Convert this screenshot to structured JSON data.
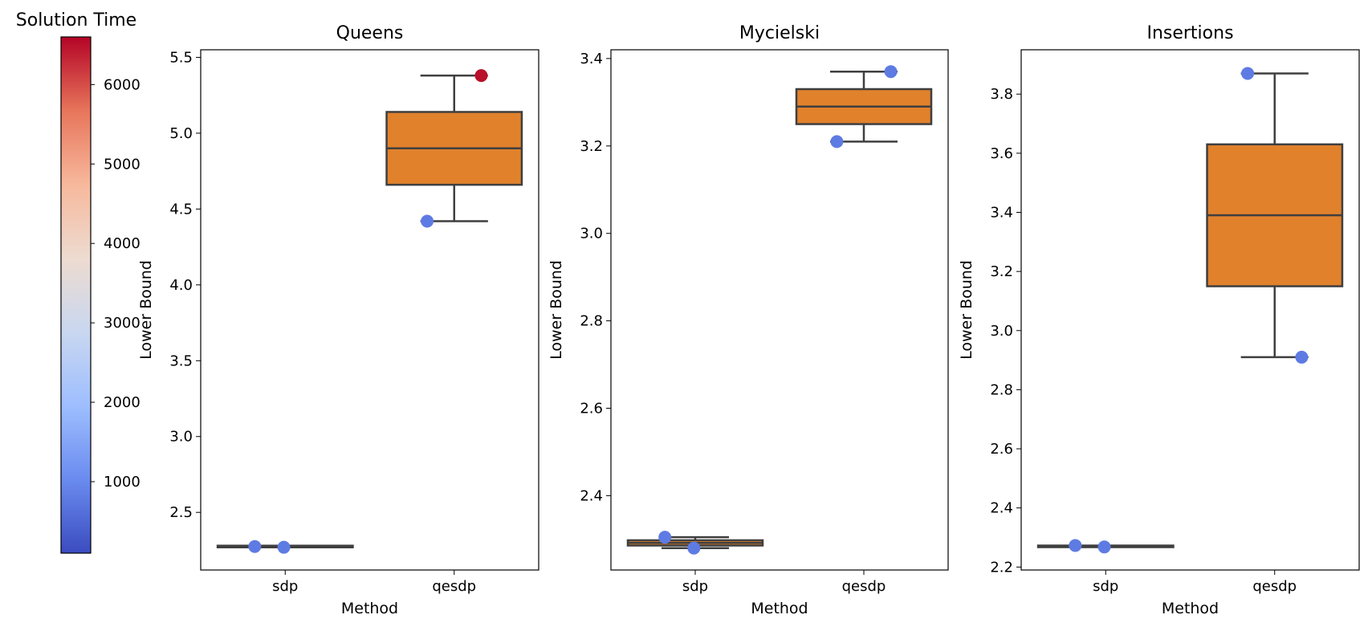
{
  "chart_data": {
    "type": "box-strip",
    "x_categories": [
      "sdp",
      "qesdp"
    ],
    "colorbar": {
      "title": "Solution Time",
      "colormap": "coolwarm",
      "range": [
        100,
        6600
      ],
      "ticks": [
        1000,
        2000,
        3000,
        4000,
        5000,
        6000
      ],
      "tick_labels": [
        "1000",
        "2000",
        "3000",
        "4000",
        "5000",
        "6000"
      ],
      "colors": [
        "#3b4cc0",
        "#6a8bef",
        "#9ebeff",
        "#c9d7f0",
        "#eddbd0",
        "#f7b89c",
        "#e7755b",
        "#b40426"
      ]
    },
    "box_color": "#e1812c",
    "panels": [
      {
        "title": "Queens",
        "xlabel": "Method",
        "ylabel": "Lower Bound",
        "ylim": [
          2.12,
          5.55
        ],
        "yticks": [
          2.5,
          3.0,
          3.5,
          4.0,
          4.5,
          5.0,
          5.5
        ],
        "ytick_labels": [
          "2.5",
          "3.0",
          "3.5",
          "4.0",
          "4.5",
          "5.0",
          "5.5"
        ],
        "boxes": [
          {
            "category": "sdp",
            "whislo": 2.27,
            "q1": 2.27,
            "med": 2.27,
            "q3": 2.275,
            "whishi": 2.275
          },
          {
            "category": "qesdp",
            "whislo": 4.42,
            "q1": 4.66,
            "med": 4.9,
            "q3": 5.14,
            "whishi": 5.38
          }
        ],
        "points": [
          {
            "category": "sdp",
            "y": 2.275,
            "time": 800
          },
          {
            "category": "sdp",
            "y": 2.27,
            "time": 800
          },
          {
            "category": "qesdp",
            "y": 4.42,
            "time": 800
          },
          {
            "category": "qesdp",
            "y": 5.38,
            "time": 6500
          }
        ]
      },
      {
        "title": "Mycielski",
        "xlabel": "Method",
        "ylabel": "Lower Bound",
        "ylim": [
          2.23,
          3.42
        ],
        "yticks": [
          2.4,
          2.6,
          2.8,
          3.0,
          3.2,
          3.4
        ],
        "ytick_labels": [
          "2.4",
          "2.6",
          "2.8",
          "3.0",
          "3.2",
          "3.4"
        ],
        "boxes": [
          {
            "category": "sdp",
            "whislo": 2.28,
            "q1": 2.286,
            "med": 2.292,
            "q3": 2.298,
            "whishi": 2.305
          },
          {
            "category": "qesdp",
            "whislo": 3.21,
            "q1": 3.25,
            "med": 3.29,
            "q3": 3.33,
            "whishi": 3.37
          }
        ],
        "points": [
          {
            "category": "sdp",
            "y": 2.305,
            "time": 800
          },
          {
            "category": "sdp",
            "y": 2.28,
            "time": 800
          },
          {
            "category": "qesdp",
            "y": 3.21,
            "time": 800
          },
          {
            "category": "qesdp",
            "y": 3.37,
            "time": 800
          }
        ]
      },
      {
        "title": "Insertions",
        "xlabel": "Method",
        "ylabel": "Lower Bound",
        "ylim": [
          2.19,
          3.95
        ],
        "yticks": [
          2.2,
          2.4,
          2.6,
          2.8,
          3.0,
          3.2,
          3.4,
          3.6,
          3.8
        ],
        "ytick_labels": [
          "2.2",
          "2.4",
          "2.6",
          "2.8",
          "3.0",
          "3.2",
          "3.4",
          "3.6",
          "3.8"
        ],
        "boxes": [
          {
            "category": "sdp",
            "whislo": 2.27,
            "q1": 2.27,
            "med": 2.27,
            "q3": 2.27,
            "whishi": 2.27
          },
          {
            "category": "qesdp",
            "whislo": 2.91,
            "q1": 3.15,
            "med": 3.39,
            "q3": 3.63,
            "whishi": 3.87
          }
        ],
        "points": [
          {
            "category": "sdp",
            "y": 2.273,
            "time": 800
          },
          {
            "category": "sdp",
            "y": 2.268,
            "time": 800
          },
          {
            "category": "qesdp",
            "y": 3.87,
            "time": 800
          },
          {
            "category": "qesdp",
            "y": 2.91,
            "time": 800
          }
        ]
      }
    ]
  }
}
